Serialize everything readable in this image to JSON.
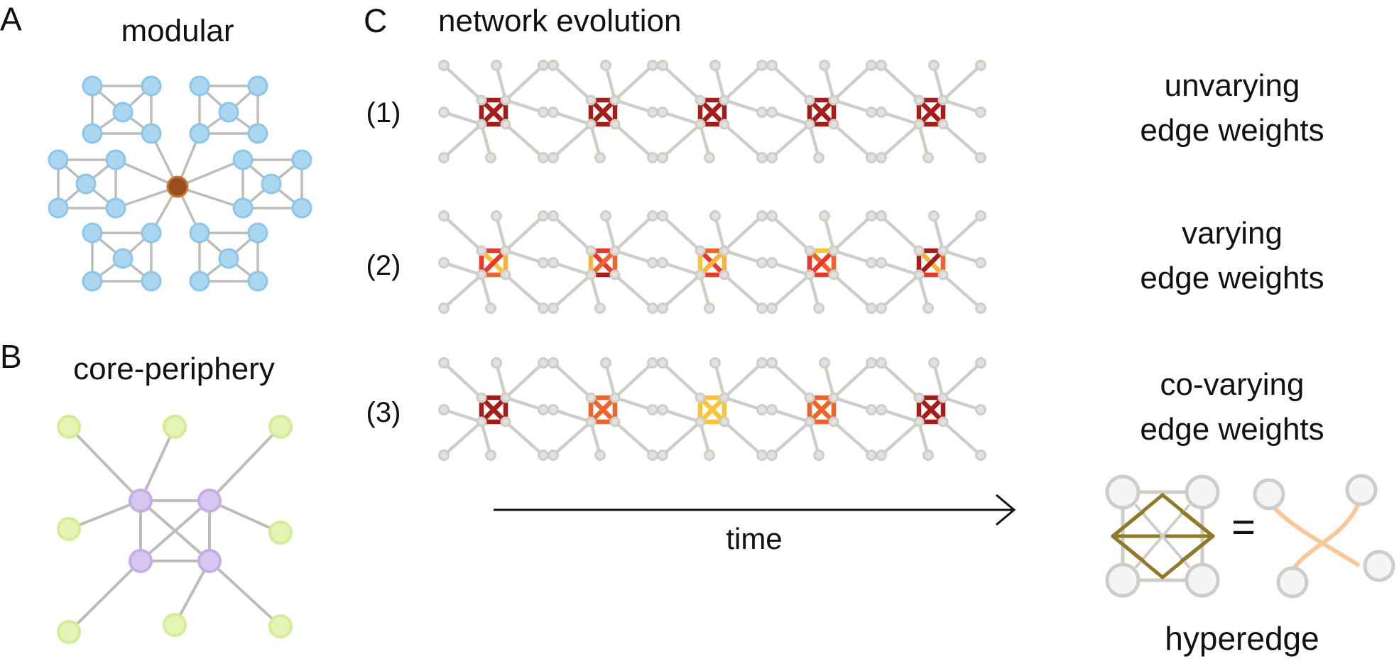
{
  "panels": {
    "a": {
      "letter": "A",
      "title": "modular"
    },
    "b": {
      "letter": "B",
      "title": "core-periphery"
    },
    "c": {
      "letter": "C",
      "title": "network evolution",
      "rows": [
        {
          "label": "(1)",
          "desc_line1": "unvarying",
          "desc_line2": "edge weights",
          "frames": [
            [
              "#a51d18",
              "#a51d18",
              "#a51d18",
              "#a51d18",
              "#a51d18",
              "#a51d18"
            ],
            [
              "#a51d18",
              "#a51d18",
              "#a51d18",
              "#a51d18",
              "#a51d18",
              "#a51d18"
            ],
            [
              "#a51d18",
              "#a51d18",
              "#a51d18",
              "#a51d18",
              "#a51d18",
              "#a51d18"
            ],
            [
              "#a51d18",
              "#a51d18",
              "#a51d18",
              "#a51d18",
              "#a51d18",
              "#a51d18"
            ],
            [
              "#a51d18",
              "#a51d18",
              "#a51d18",
              "#a51d18",
              "#a51d18",
              "#a51d18"
            ]
          ]
        },
        {
          "label": "(2)",
          "desc_line1": "varying",
          "desc_line2": "edge weights",
          "frames": [
            [
              "#e8392b",
              "#f7b33a",
              "#f0642b",
              "#e8392b",
              "#f7c43a",
              "#e8392b"
            ],
            [
              "#e8392b",
              "#f0642b",
              "#a51d18",
              "#f7b33a",
              "#e8392b",
              "#f0642b"
            ],
            [
              "#f0642b",
              "#f7b33a",
              "#e8392b",
              "#f7c43a",
              "#e8392b",
              "#f7b33a"
            ],
            [
              "#f7c43a",
              "#f0642b",
              "#e8392b",
              "#e8392b",
              "#f0642b",
              "#e8392b"
            ],
            [
              "#a51d18",
              "#f0642b",
              "#e8392b",
              "#a51d18",
              "#f7b33a",
              "#a51d18"
            ]
          ]
        },
        {
          "label": "(3)",
          "desc_line1": "co-varying",
          "desc_line2": "edge weights",
          "frames": [
            [
              "#a51d18",
              "#a51d18",
              "#a51d18",
              "#a51d18",
              "#a51d18",
              "#a51d18"
            ],
            [
              "#f0642b",
              "#f0642b",
              "#f0642b",
              "#f0642b",
              "#f0642b",
              "#f0642b"
            ],
            [
              "#f7c43a",
              "#f7c43a",
              "#f7c43a",
              "#f7c43a",
              "#f7c43a",
              "#f7c43a"
            ],
            [
              "#f0642b",
              "#f0642b",
              "#f0642b",
              "#f0642b",
              "#f0642b",
              "#f0642b"
            ],
            [
              "#a51d18",
              "#a51d18",
              "#a51d18",
              "#a51d18",
              "#a51d18",
              "#a51d18"
            ]
          ]
        }
      ],
      "time_label": "time",
      "hyperedge_label": "hyperedge",
      "equals_sign": "="
    }
  },
  "colors": {
    "modular_node": "#aad6f0",
    "modular_node_stroke": "#8cc6ea",
    "hub_node": "#9a4c1c",
    "core_node": "#d8c6f0",
    "periphery_node": "#e4f4b4",
    "periphery_stroke": "#d4ec98",
    "edge_gray": "#bdbdb8",
    "evolution_gray": "#cfcdc8",
    "hyperedge_olive": "#8f7a2a",
    "hyperedge_curve": "#f8c89a"
  }
}
